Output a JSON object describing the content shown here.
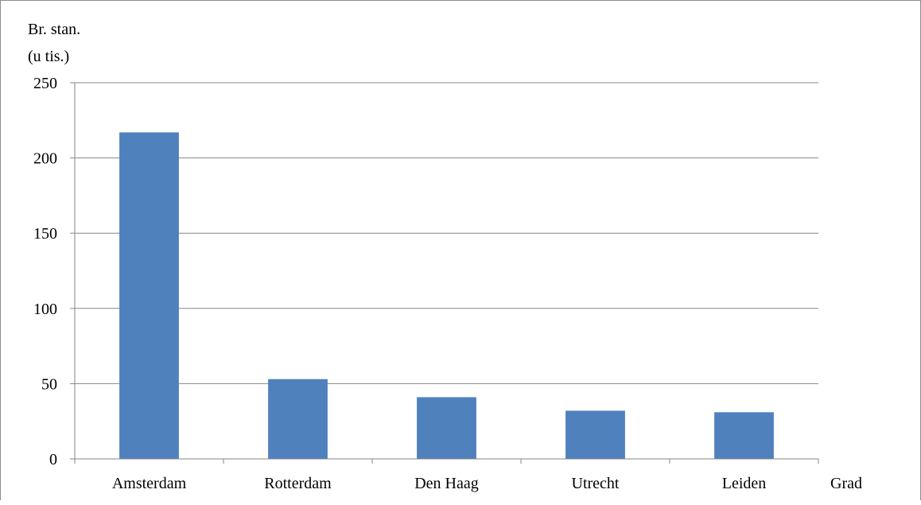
{
  "chart_data": {
    "type": "bar",
    "title": "",
    "ylabel_lines": [
      "Br. stan.",
      "(u tis.)"
    ],
    "xlabel": "Grad",
    "categories": [
      "Amsterdam",
      "Rotterdam",
      "Den Haag",
      "Utrecht",
      "Leiden"
    ],
    "values": [
      217,
      53,
      41,
      32,
      31
    ],
    "ylim": [
      0,
      250
    ],
    "yticks": [
      0,
      50,
      100,
      150,
      200,
      250
    ],
    "grid": true,
    "legend": "none",
    "colors": {
      "bar": "#4f81bd",
      "grid": "#868686",
      "axis": "#868686"
    }
  }
}
